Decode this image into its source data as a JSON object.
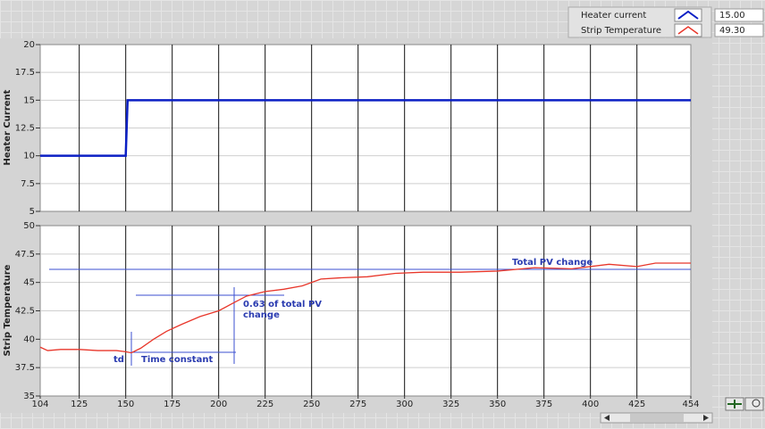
{
  "chart_data": [
    {
      "type": "line",
      "ylabel": "Heater Current",
      "x": [
        104,
        150,
        151,
        454
      ],
      "series": [
        {
          "name": "Heater current",
          "color": "#0b1fc4",
          "values": [
            10,
            10,
            15,
            15
          ]
        }
      ],
      "xlim": [
        104,
        454
      ],
      "ylim": [
        5,
        20
      ],
      "yticks": [
        5,
        7.5,
        10,
        12.5,
        15,
        17.5,
        20
      ],
      "grid": true
    },
    {
      "type": "line",
      "ylabel": "Strip Temperature",
      "x": [
        104,
        108,
        115,
        125,
        135,
        145,
        150,
        153,
        158,
        165,
        172,
        180,
        190,
        200,
        208,
        215,
        225,
        235,
        245,
        255,
        265,
        280,
        295,
        310,
        330,
        350,
        370,
        390,
        410,
        425,
        435,
        454
      ],
      "series": [
        {
          "name": "Strip Temperature",
          "color": "#e8362a",
          "values": [
            39.3,
            39.0,
            39.1,
            39.1,
            39.0,
            39.0,
            38.9,
            38.8,
            39.2,
            40.0,
            40.7,
            41.3,
            42.0,
            42.5,
            43.2,
            43.8,
            44.2,
            44.4,
            44.7,
            45.3,
            45.4,
            45.5,
            45.8,
            45.9,
            45.9,
            46.0,
            46.3,
            46.2,
            46.6,
            46.4,
            46.7,
            46.7
          ]
        }
      ],
      "xlim": [
        104,
        454
      ],
      "ylim": [
        35,
        50
      ],
      "yticks": [
        35,
        37.5,
        40,
        42.5,
        45,
        47.5,
        50
      ],
      "xticks": [
        104,
        125,
        150,
        175,
        200,
        225,
        250,
        275,
        300,
        325,
        350,
        375,
        400,
        425,
        454
      ],
      "grid": true,
      "annotations": [
        "Total PV change",
        "0.63 of total PV",
        "change",
        "td",
        "Time constant"
      ]
    }
  ],
  "display_values": [
    "15.00",
    "49.30"
  ]
}
